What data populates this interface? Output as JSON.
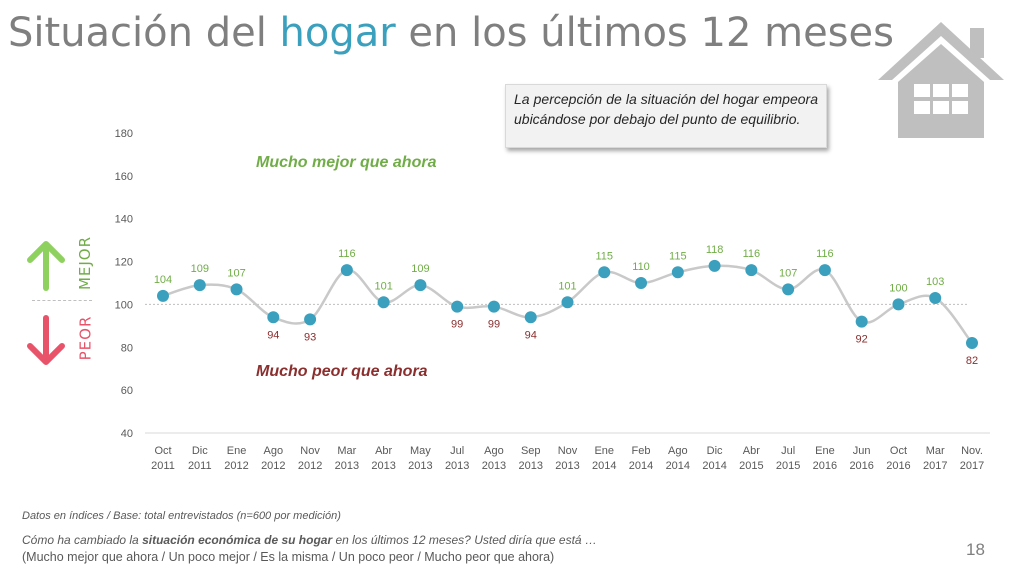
{
  "slide": {
    "title_pre": "Situación del ",
    "title_accent": "hogar",
    "title_post": " en los últimos 12 meses",
    "callout": "La percepción de la situación del hogar empeora ubicándose por debajo del punto de equilibrio.",
    "side_up_label": "MEJOR",
    "side_down_label": "PEOR",
    "footnote": "Datos en índices / Base: total entrevistados (n=600 por medición)",
    "question_pre": "Cómo ha cambiado la ",
    "question_bold": "situación económica de su hogar",
    "question_post": " en los últimos 12 meses? Usted diría que está …",
    "options": "(Mucho mejor que ahora / Un poco mejor / Es la misma / Un poco peor / Mucho peor que ahora)",
    "page_number": "18",
    "colors": {
      "title_accent": "#3aa0bd",
      "marker": "#3aa0bd",
      "line": "#c9c9c9",
      "above_label": "#70ad47",
      "below_label": "#8b2e2e",
      "arrow_up": "#8ed15e",
      "arrow_down": "#e8536a",
      "house": "#bfbfbf"
    },
    "icons": [
      "house-icon",
      "arrow-up-icon",
      "arrow-down-icon"
    ]
  },
  "chart_data": {
    "type": "line",
    "x": [
      "Oct 2011",
      "Dic 2011",
      "Ene 2012",
      "Ago 2012",
      "Nov 2012",
      "Mar 2013",
      "Abr 2013",
      "May 2013",
      "Jul 2013",
      "Ago 2013",
      "Sep 2013",
      "Nov 2013",
      "Ene 2014",
      "Feb 2014",
      "Ago 2014",
      "Dic 2014",
      "Abr 2015",
      "Jul 2015",
      "Ene 2016",
      "Jun 2016",
      "Oct 2016",
      "Mar 2017",
      "Nov. 2017"
    ],
    "x_tick_lines": [
      [
        "Oct",
        "2011"
      ],
      [
        "Dic",
        "2011"
      ],
      [
        "Ene",
        "2012"
      ],
      [
        "Ago",
        "2012"
      ],
      [
        "Nov",
        "2012"
      ],
      [
        "Mar",
        "2013"
      ],
      [
        "Abr",
        "2013"
      ],
      [
        "May",
        "2013"
      ],
      [
        "Jul",
        "2013"
      ],
      [
        "Ago",
        "2013"
      ],
      [
        "Sep",
        "2013"
      ],
      [
        "Nov",
        "2013"
      ],
      [
        "Ene",
        "2014"
      ],
      [
        "Feb",
        "2014"
      ],
      [
        "Ago",
        "2014"
      ],
      [
        "Dic",
        "2014"
      ],
      [
        "Abr",
        "2015"
      ],
      [
        "Jul",
        "2015"
      ],
      [
        "Ene",
        "2016"
      ],
      [
        "Jun",
        "2016"
      ],
      [
        "Oct",
        "2016"
      ],
      [
        "Mar",
        "2017"
      ],
      [
        "Nov.",
        "2017"
      ]
    ],
    "values": [
      104,
      109,
      107,
      94,
      93,
      116,
      101,
      109,
      99,
      99,
      94,
      101,
      115,
      110,
      115,
      118,
      116,
      107,
      116,
      92,
      100,
      103,
      82
    ],
    "ylim": [
      40,
      180
    ],
    "yticks": [
      40,
      60,
      80,
      100,
      120,
      140,
      160,
      180
    ],
    "reference_line": 100,
    "zone_labels": {
      "upper": "Mucho mejor que ahora",
      "lower": "Mucho peor que ahora"
    },
    "grid": false,
    "legend": "none"
  }
}
